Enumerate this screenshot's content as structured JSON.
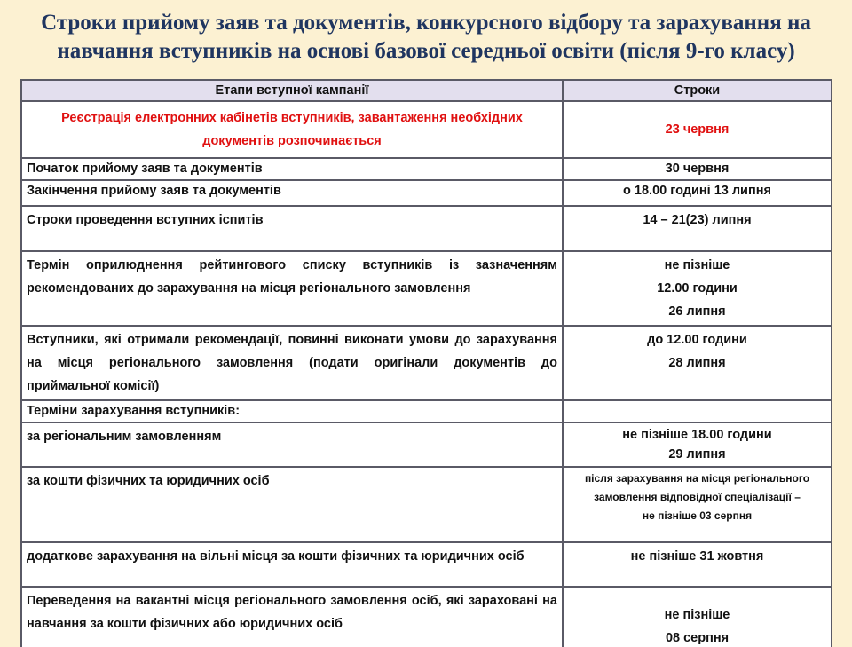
{
  "title": "Строки прийому заяв та документів, конкурсного відбору та зарахування на навчання вступників на основі базової середньої освіти (після 9-го класу)",
  "table": {
    "headers": [
      "Етапи вступної кампанії",
      "Строки"
    ],
    "rows": [
      {
        "stage": "Реєстрація електронних кабінетів вступників, завантаження необхідних документів розпочинається",
        "term": "23 червня"
      },
      {
        "stage": "Початок прийому заяв та документів",
        "term": "30 червня"
      },
      {
        "stage": "Закінчення прийому заяв та документів",
        "term": "о 18.00 годині 13 липня"
      },
      {
        "stage": "Строки проведення вступних іспитів",
        "term": "14 – 21(23) липня"
      },
      {
        "stage": "Термін оприлюднення рейтингового списку вступників із зазначенням рекомендованих до зарахування на місця регіонального замовлення",
        "term": [
          "не пізніше",
          "12.00 години",
          "26 липня"
        ]
      },
      {
        "stage": "Вступники, які отримали рекомендації, повинні виконати умови до зарахування на місця регіонального замовлення (подати оригінали документів до приймальної комісії)",
        "term": [
          "до 12.00 години",
          "28 липня"
        ]
      },
      {
        "stage": "Терміни зарахування вступників:",
        "term": ""
      },
      {
        "stage": "за регіональним замовленням",
        "term": [
          "не пізніше 18.00 години",
          "29 липня"
        ]
      },
      {
        "stage": "за кошти фізичних та юридичних осіб",
        "term": [
          "після зарахування на місця регіонального замовлення відповідної спеціалізації –",
          "не пізніше 03 серпня"
        ]
      },
      {
        "stage": "додаткове зарахування на вільні місця за кошти фізичних та юридичних осіб",
        "term": "не пізніше 31 жовтня"
      },
      {
        "stage": "Переведення на вакантні місця регіонального замовлення осіб, які зараховані на навчання за кошти фізичних або юридичних осіб",
        "term": [
          "не пізніше",
          "08 серпня"
        ]
      }
    ]
  },
  "colors": {
    "background": "#fcf1d2",
    "title": "#1f3560",
    "highlight": "#e01010",
    "header_bg": "#e3dfee"
  }
}
